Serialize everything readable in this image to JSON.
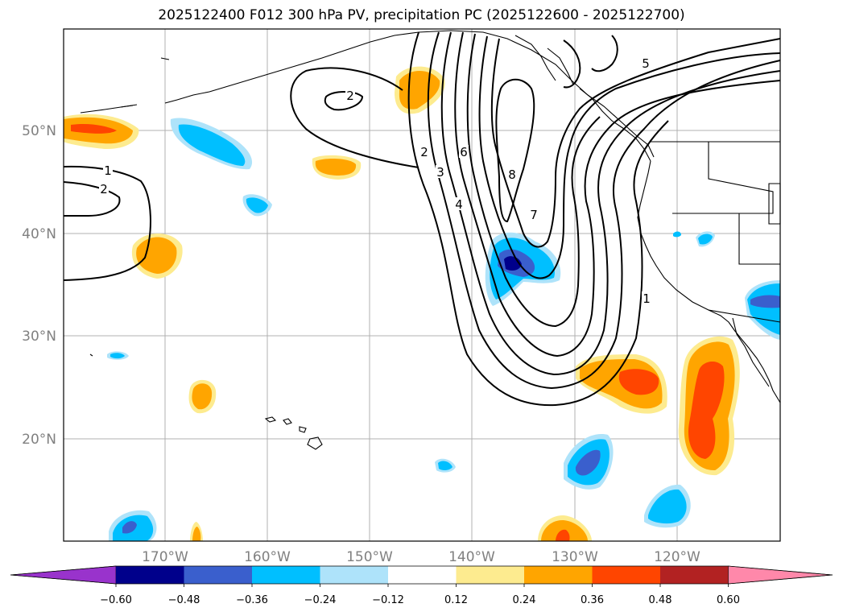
{
  "title": "2025122400 F012 300 hPa PV, precipitation PC (2025122600 - 2025122700)",
  "map": {
    "lon_labels": [
      "170°W",
      "160°W",
      "150°W",
      "140°W",
      "130°W",
      "120°W"
    ],
    "lat_labels": [
      "50°N",
      "40°N",
      "30°N",
      "20°N"
    ],
    "contour_labels": [
      "1",
      "2",
      "2",
      "2",
      "3",
      "4",
      "6",
      "8",
      "7",
      "1",
      "5"
    ]
  },
  "colorbar": {
    "ticks": [
      "−0.60",
      "−0.48",
      "−0.36",
      "−0.24",
      "−0.12",
      "0.12",
      "0.24",
      "0.36",
      "0.48",
      "0.60"
    ],
    "colors": [
      "#9933cc",
      "#00008b",
      "#3a5fcd",
      "#00bfff",
      "#aee3fa",
      "#ffffff",
      "#fdeb8f",
      "#ffa500",
      "#ff4500",
      "#b22222",
      "#ff88aa"
    ]
  }
}
